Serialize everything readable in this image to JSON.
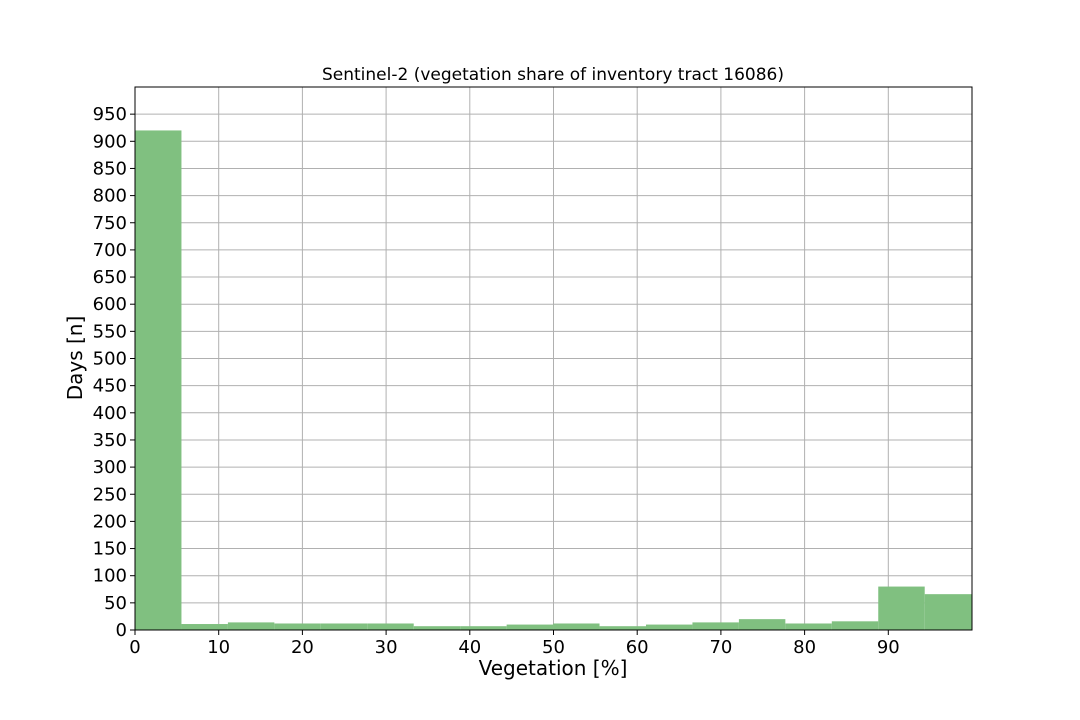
{
  "chart_data": {
    "type": "bar",
    "title": "Sentinel-2 (vegetation share of inventory tract 16086)",
    "xlabel": "Vegetation [%]",
    "ylabel": "Days [n]",
    "xlim": [
      0,
      100
    ],
    "ylim": [
      0,
      1000
    ],
    "xticks": [
      0,
      10,
      20,
      30,
      40,
      50,
      60,
      70,
      80,
      90
    ],
    "yticks": [
      0,
      50,
      100,
      150,
      200,
      250,
      300,
      350,
      400,
      450,
      500,
      550,
      600,
      650,
      700,
      750,
      800,
      850,
      900,
      950
    ],
    "grid": true,
    "bar_color": "#80c080",
    "bin_edges": [
      0,
      5.55,
      11.1,
      16.65,
      22.2,
      27.75,
      33.3,
      38.85,
      44.4,
      49.95,
      55.5,
      61.05,
      66.6,
      72.15,
      77.7,
      83.25,
      88.8,
      94.35,
      100
    ],
    "values": [
      920,
      11,
      14,
      12,
      12,
      12,
      7,
      7,
      10,
      12,
      7,
      10,
      14,
      20,
      12,
      16,
      80,
      66
    ]
  }
}
